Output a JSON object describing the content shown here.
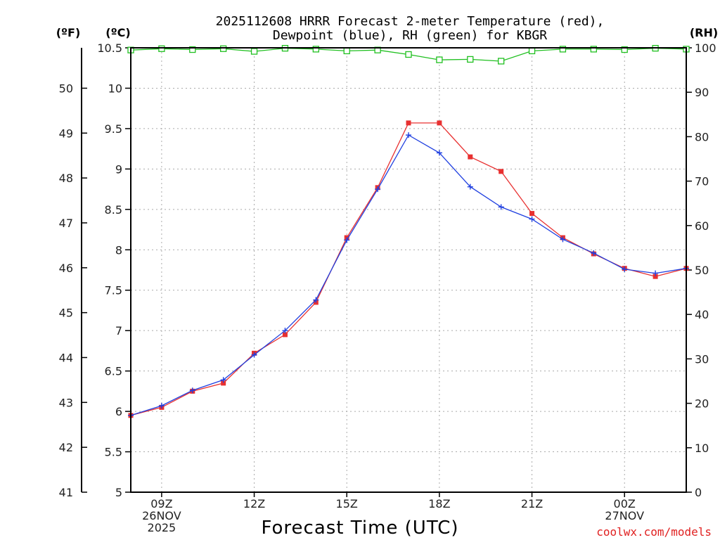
{
  "chart_data": {
    "type": "line",
    "title_lines": [
      "2025112608 HRRR Forecast 2-meter Temperature (red),",
      "Dewpoint (blue), RH (green) for KBGR"
    ],
    "unit_labels": {
      "fahrenheit": "(ºF)",
      "celsius": "(ºC)",
      "rh": "(RH)"
    },
    "xlabel": "Forecast Time (UTC)",
    "credit": "coolwx.com/models",
    "x_hours": [
      8,
      9,
      10,
      11,
      12,
      13,
      14,
      15,
      16,
      17,
      18,
      19,
      20,
      21,
      22,
      23,
      24,
      25,
      26
    ],
    "xlim": [
      8,
      26
    ],
    "x_ticks": [
      {
        "hour": 9,
        "lines": [
          "09Z",
          "26NOV",
          "2025"
        ]
      },
      {
        "hour": 12,
        "lines": [
          "12Z"
        ]
      },
      {
        "hour": 15,
        "lines": [
          "15Z"
        ]
      },
      {
        "hour": 18,
        "lines": [
          "18Z"
        ]
      },
      {
        "hour": 21,
        "lines": [
          "21Z"
        ]
      },
      {
        "hour": 24,
        "lines": [
          "00Z",
          "27NOV"
        ]
      }
    ],
    "celsius_axis": {
      "ylim": [
        5,
        10.5
      ],
      "ticks": [
        "5",
        "5.5",
        "6",
        "6.5",
        "7",
        "7.5",
        "8",
        "8.5",
        "9",
        "9.5",
        "10",
        "10.5"
      ]
    },
    "fahrenheit_axis": {
      "ylim": [
        41,
        50.9
      ],
      "ticks": [
        "41",
        "42",
        "43",
        "44",
        "45",
        "46",
        "47",
        "48",
        "49",
        "50"
      ]
    },
    "rh_axis": {
      "ylim": [
        0,
        100
      ],
      "ticks": [
        "0",
        "10",
        "20",
        "30",
        "40",
        "50",
        "60",
        "70",
        "80",
        "90",
        "100"
      ]
    },
    "series": [
      {
        "name": "Temperature",
        "axis": "celsius",
        "color": "#e83030",
        "marker": "filled-square",
        "values": [
          5.95,
          6.05,
          6.25,
          6.35,
          6.72,
          6.95,
          7.35,
          8.15,
          8.77,
          9.57,
          9.57,
          9.15,
          8.97,
          8.45,
          8.15,
          7.95,
          7.77,
          7.67,
          7.77
        ]
      },
      {
        "name": "Dewpoint",
        "axis": "celsius",
        "color": "#2040e0",
        "marker": "plus",
        "values": [
          5.95,
          6.07,
          6.26,
          6.39,
          6.7,
          7.0,
          7.38,
          8.12,
          8.75,
          9.42,
          9.2,
          8.78,
          8.53,
          8.38,
          8.13,
          7.96,
          7.76,
          7.71,
          7.77
        ]
      },
      {
        "name": "RH",
        "axis": "rh",
        "color": "#20c020",
        "marker": "open-square",
        "values": [
          99.5,
          99.8,
          99.6,
          99.8,
          99.2,
          99.9,
          99.7,
          99.3,
          99.5,
          98.5,
          97.3,
          97.4,
          97.0,
          99.3,
          99.7,
          99.7,
          99.6,
          99.9,
          99.7
        ]
      }
    ],
    "grid": true
  }
}
